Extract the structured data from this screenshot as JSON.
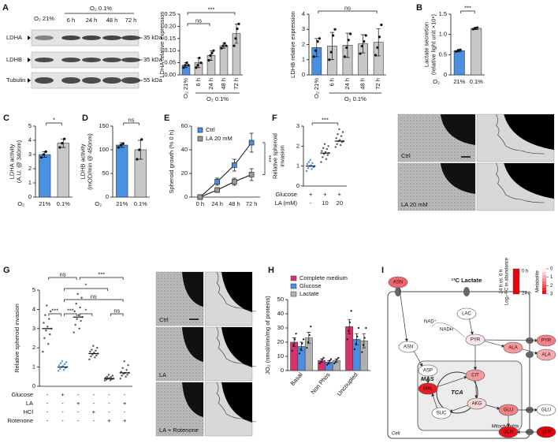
{
  "blot": {
    "panel": "A",
    "conditions": [
      "O₂ 21%",
      "O₂ 0.1%"
    ],
    "timepoints": [
      "6 h",
      "24 h",
      "48 h",
      "72 h"
    ],
    "bands": [
      {
        "name": "LDHA",
        "size": "35 kDa"
      },
      {
        "name": "LDHB",
        "size": "35 kDa"
      },
      {
        "name": "Tubulin",
        "size": "55 kDa"
      }
    ]
  },
  "chart_data": [
    {
      "type": "bar",
      "ylabel": [
        "LDHA relative expression"
      ],
      "categories": [
        "O₂ 21%",
        "6 h",
        "24 h",
        "48 h",
        "72 h"
      ],
      "group_label": "O₂ 0.1%",
      "values": [
        0.04,
        0.05,
        0.08,
        0.12,
        0.17
      ],
      "errors": [
        0.01,
        0.02,
        0.02,
        0.01,
        0.04
      ],
      "points": [
        [
          0.03,
          0.04,
          0.05,
          0.04
        ],
        [
          0.03,
          0.04,
          0.07,
          0.05
        ],
        [
          0.06,
          0.08,
          0.09,
          0.1
        ],
        [
          0.11,
          0.12,
          0.13,
          0.12
        ],
        [
          0.12,
          0.15,
          0.19,
          0.21
        ]
      ],
      "colors": [
        "#4a90e2",
        "#c8c8c8",
        "#c8c8c8",
        "#c8c8c8",
        "#c8c8c8"
      ],
      "ylim": [
        0,
        0.25
      ],
      "yticks": [
        {
          "value": 0,
          "label": "0.00"
        },
        0.05,
        {
          "value": 0.1,
          "label": "0.10"
        },
        0.15,
        {
          "value": 0.2,
          "label": "0.20"
        },
        0.25
      ],
      "annotations": [
        {
          "text": "ns",
          "from": 0,
          "to": 2
        },
        {
          "text": "***",
          "from": 0,
          "to": 4
        }
      ]
    },
    {
      "type": "bar",
      "ylabel": [
        "LDHB relative expression"
      ],
      "categories": [
        "O₂ 21%",
        "6 h",
        "24 h",
        "48 h",
        "72 h"
      ],
      "group_label": "O₂ 0.1%",
      "values": [
        1.8,
        1.9,
        1.95,
        2.05,
        2.15
      ],
      "errors": [
        0.6,
        0.9,
        0.8,
        0.6,
        0.9
      ],
      "points": [
        [
          1.2,
          1.6,
          2.2,
          2.4
        ],
        [
          1.0,
          1.5,
          2.6,
          3.0
        ],
        [
          1.2,
          1.8,
          2.3,
          2.7
        ],
        [
          1.4,
          1.9,
          2.2,
          2.6
        ],
        [
          1.3,
          1.8,
          2.5,
          3.3
        ]
      ],
      "colors": [
        "#4a90e2",
        "#c8c8c8",
        "#c8c8c8",
        "#c8c8c8",
        "#c8c8c8"
      ],
      "ylim": [
        0,
        4
      ],
      "yticks": [
        0,
        1,
        2,
        3,
        4
      ],
      "annotations": [
        {
          "text": "ns",
          "from": 0,
          "to": 4
        }
      ]
    },
    {
      "type": "bar",
      "panel": "B",
      "ylabel": [
        "Lactate secretion",
        "(relative light unit ×10⁶)"
      ],
      "xlabel": "O₂",
      "categories": [
        "21%",
        "0.1%"
      ],
      "values": [
        0.6,
        1.15
      ],
      "errors": [
        0.03,
        0.03
      ],
      "points": [
        [
          0.58,
          0.6,
          0.62
        ],
        [
          1.13,
          1.15,
          1.17
        ]
      ],
      "colors": [
        "#4a90e2",
        "#c8c8c8"
      ],
      "ylim": [
        0,
        1.5
      ],
      "yticks": [
        0,
        0.5,
        {
          "value": 1,
          "label": "1.0"
        },
        1.5
      ],
      "annotations": [
        {
          "text": "***",
          "from": 0,
          "to": 1
        }
      ]
    },
    {
      "type": "bar",
      "panel": "C",
      "ylabel": [
        "LDHA activity",
        "(A.U. @ 340nm)"
      ],
      "xlabel": "O₂",
      "categories": [
        "21%",
        "0.1%"
      ],
      "values": [
        3.0,
        3.8
      ],
      "errors": [
        0.2,
        0.3
      ],
      "points": [
        [
          2.8,
          3.0,
          3.2
        ],
        [
          3.5,
          3.8,
          4.1
        ]
      ],
      "colors": [
        "#4a90e2",
        "#c8c8c8"
      ],
      "ylim": [
        0,
        5
      ],
      "yticks": [
        0,
        1,
        2,
        3,
        4,
        5
      ],
      "annotations": [
        {
          "text": "*",
          "from": 0,
          "to": 1
        }
      ]
    },
    {
      "type": "bar",
      "panel": "D",
      "ylabel": [
        "LDHB activity",
        "(mOD/min @ 450nm)"
      ],
      "xlabel": "O₂",
      "categories": [
        "21%",
        "0.1%"
      ],
      "values": [
        110,
        100
      ],
      "errors": [
        5,
        20
      ],
      "points": [
        [
          105,
          110,
          113
        ],
        [
          80,
          100,
          122
        ]
      ],
      "colors": [
        "#4a90e2",
        "#c8c8c8"
      ],
      "ylim": [
        0,
        150
      ],
      "yticks": [
        0,
        50,
        100,
        150
      ],
      "annotations": [
        {
          "text": "ns",
          "from": 0,
          "to": 1
        }
      ]
    },
    {
      "type": "line",
      "panel": "E",
      "ylabel": [
        "Spheroid growth (% 0 h)"
      ],
      "categories": [
        "0 h",
        "24 h",
        "48 h",
        "72 h"
      ],
      "series": [
        {
          "name": "Ctrl",
          "color": "#4a90e2",
          "values": [
            0,
            13,
            27,
            46
          ],
          "errors": [
            1,
            3,
            5,
            8
          ]
        },
        {
          "name": "LA 20 mM",
          "color": "#9a9a9a",
          "values": [
            0,
            6,
            13,
            19
          ],
          "errors": [
            1,
            2,
            3,
            5
          ]
        }
      ],
      "ylim": [
        0,
        60
      ],
      "yticks": [
        0,
        20,
        40,
        60
      ],
      "annotations": [
        {
          "text": "***"
        }
      ]
    },
    {
      "type": "strip",
      "panel": "F",
      "ylabel": [
        "Relative spheroid",
        "invasion"
      ],
      "conditions": [
        {
          "name": "Glucose",
          "values": [
            "+",
            "+",
            "+"
          ]
        },
        {
          "name": "LA (mM)",
          "values": [
            "-",
            "10",
            "20"
          ]
        }
      ],
      "medians": [
        1.0,
        1.65,
        2.25
      ],
      "colors": [
        "#4a90e2",
        "#555555",
        "#555555"
      ],
      "points": [
        [
          0.75,
          0.85,
          0.9,
          0.95,
          1.0,
          1.0,
          1.05,
          1.1,
          1.15,
          1.2,
          0.95,
          1.3
        ],
        [
          1.2,
          1.35,
          1.45,
          1.55,
          1.6,
          1.65,
          1.7,
          1.75,
          1.85,
          1.9,
          2.0,
          2.1
        ],
        [
          1.95,
          2.05,
          2.1,
          2.2,
          2.25,
          2.25,
          2.3,
          2.4,
          2.5,
          2.6,
          2.7,
          2.85
        ]
      ],
      "ylim": [
        0,
        3
      ],
      "yticks": [
        0,
        1,
        2,
        3
      ],
      "annotations": [
        {
          "text": "***",
          "from": 0,
          "to": 2
        }
      ]
    },
    {
      "type": "strip",
      "panel": "G",
      "ylabel": [
        "Relative spheroid invasion"
      ],
      "conditions": [
        {
          "name": "Glucose",
          "values": [
            "-",
            "+",
            "-",
            "-",
            "-",
            "-"
          ]
        },
        {
          "name": "LA",
          "values": [
            "-",
            "-",
            "+",
            "-",
            "-",
            "+"
          ]
        },
        {
          "name": "HCl",
          "values": [
            "-",
            "-",
            "-",
            "+",
            "-",
            "-"
          ]
        },
        {
          "name": "Rotenone",
          "values": [
            "-",
            "-",
            "-",
            "-",
            "+",
            "+"
          ]
        }
      ],
      "medians": [
        3.0,
        1.0,
        3.6,
        1.7,
        0.4,
        0.7
      ],
      "colors": [
        "#555555",
        "#4a90e2",
        "#555555",
        "#555555",
        "#555555",
        "#555555"
      ],
      "points": [
        [
          1.8,
          2.2,
          2.5,
          2.7,
          2.9,
          3.0,
          3.1,
          3.3,
          3.5,
          3.7,
          3.9,
          4.2
        ],
        [
          0.8,
          0.85,
          0.9,
          0.95,
          1.0,
          1.0,
          1.05,
          1.1,
          1.15,
          1.2,
          1.25,
          1.3
        ],
        [
          2.8,
          3.0,
          3.2,
          3.4,
          3.5,
          3.6,
          3.7,
          3.9,
          4.1,
          4.3,
          4.6,
          4.8
        ],
        [
          1.4,
          1.5,
          1.55,
          1.6,
          1.65,
          1.7,
          1.75,
          1.8,
          1.85,
          1.9,
          2.0,
          2.1
        ],
        [
          0.3,
          0.32,
          0.35,
          0.37,
          0.4,
          0.4,
          0.42,
          0.45,
          0.48,
          0.5,
          0.55,
          0.6
        ],
        [
          0.4,
          0.5,
          0.55,
          0.6,
          0.65,
          0.7,
          0.7,
          0.75,
          0.85,
          0.95,
          1.1,
          1.3
        ]
      ],
      "ylim": [
        0,
        5
      ],
      "yticks": [
        0,
        1,
        2,
        3,
        4,
        5
      ],
      "annotations": [
        {
          "text": "ns",
          "from": 0,
          "to": 2
        },
        {
          "text": "***",
          "from": 2,
          "to": 5
        },
        {
          "text": "*",
          "from": 1,
          "to": 4
        },
        {
          "text": "ns",
          "from": 1,
          "to": 5
        },
        {
          "text": "***",
          "from": 0,
          "to": 1
        },
        {
          "text": "***",
          "from": 1,
          "to": 2
        },
        {
          "text": "*",
          "from": 2,
          "to": 3
        },
        {
          "text": "ns",
          "from": 4,
          "to": 5
        }
      ]
    },
    {
      "type": "grouped_bar",
      "panel": "H",
      "ylabel": [
        "JO₂ (nmol/min/mg of proteins)"
      ],
      "categories": [
        "Basal",
        "Non Phos",
        "Uncoupled"
      ],
      "series": [
        {
          "name": "Complete medium",
          "color": "#d6336c",
          "values": [
            20,
            7,
            31
          ],
          "errors": [
            3,
            1,
            5
          ],
          "points": [
            [
              14,
              18,
              22,
              26
            ],
            [
              5,
              6,
              8,
              9
            ],
            [
              22,
              28,
              34,
              42
            ]
          ]
        },
        {
          "name": "Glucose",
          "color": "#4a90e2",
          "values": [
            17,
            6,
            22
          ],
          "errors": [
            3,
            1,
            4
          ],
          "points": [
            [
              12,
              15,
              19,
              22
            ],
            [
              4,
              5,
              7,
              8
            ],
            [
              15,
              19,
              24,
              30
            ]
          ]
        },
        {
          "name": "Lactate",
          "color": "#b0b0b0",
          "values": [
            23,
            7,
            21
          ],
          "errors": [
            4,
            1,
            5
          ],
          "points": [
            [
              16,
              20,
              25,
              31
            ],
            [
              5,
              6,
              8,
              9
            ],
            [
              13,
              18,
              23,
              30
            ]
          ]
        }
      ],
      "ylim": [
        0,
        50
      ],
      "yticks": [
        0,
        10,
        20,
        30,
        40,
        50
      ]
    }
  ],
  "images": [
    {
      "labels": [
        "Ctrl",
        "LA 20 mM"
      ]
    },
    {
      "labels": [
        "Ctrl",
        "LA",
        "LA + Rotenone"
      ]
    }
  ],
  "diagram": {
    "panel": "I",
    "title": "¹³C Lactate",
    "compartments": [
      "Cell",
      "Mitochondria"
    ],
    "pathways": [
      "MAS",
      "TCA"
    ],
    "cofactors": [
      "NAD⁺",
      "NADH"
    ],
    "nodes": [
      {
        "label": "ASN",
        "log2fc": 1.8
      },
      {
        "label": "LAC",
        "log2fc": 0
      },
      {
        "label": "PYR",
        "log2fc": 0.3
      },
      {
        "label": "ASN",
        "log2fc": 0
      },
      {
        "label": "ASP",
        "log2fc": 0
      },
      {
        "label": "MAL",
        "log2fc": 2.7
      },
      {
        "label": "CIT",
        "log2fc": 1.2
      },
      {
        "label": "AKG",
        "log2fc": 0.5
      },
      {
        "label": "SUC",
        "log2fc": 0
      },
      {
        "label": "GLU",
        "log2fc": 1.5
      },
      {
        "label": "GLN",
        "log2fc": 2.8
      },
      {
        "label": "ALA",
        "log2fc": 1.2
      },
      {
        "label": "PYR",
        "log2fc": 1.5
      },
      {
        "label": "ALA",
        "log2fc": 1.0
      },
      {
        "label": "GLU",
        "log2fc": 0
      },
      {
        "label": "GLN",
        "log2fc": 3.0
      }
    ],
    "legend": {
      "title": [
        "Log₂-FC in abundance",
        "24 h vs. 0 h"
      ],
      "item": "Metabolite",
      "times": [
        "0 h",
        "24 h"
      ],
      "ticks": [
        0,
        1,
        2,
        3
      ]
    }
  }
}
